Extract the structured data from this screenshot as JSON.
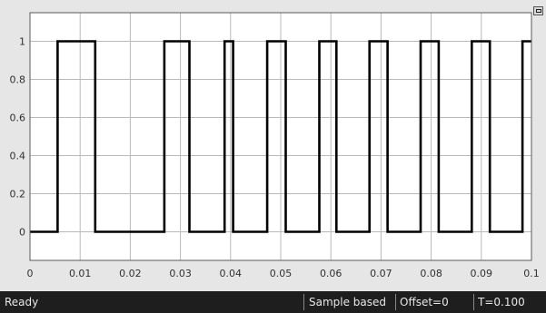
{
  "status_bar": {
    "ready": "Ready",
    "mode": "Sample based",
    "offset": "Offset=0",
    "time": "T=0.100"
  },
  "icons": {
    "autoscale": "autoscale-icon"
  },
  "colors": {
    "background": "#e6e6e6",
    "axes_background": "#ffffff",
    "grid": "#b9b9b9",
    "signal": "#000000",
    "status_bar": "#1e1e1e",
    "status_text": "#e8e8e8"
  },
  "chart_data": {
    "type": "line",
    "title": "",
    "xlabel": "",
    "ylabel": "",
    "xlim": [
      0,
      0.1
    ],
    "ylim": [
      -0.15,
      1.15
    ],
    "grid": true,
    "x_ticks": [
      "0",
      "0.01",
      "0.02",
      "0.03",
      "0.04",
      "0.05",
      "0.06",
      "0.07",
      "0.08",
      "0.09",
      "0.1"
    ],
    "y_ticks": [
      "0",
      "0.2",
      "0.4",
      "0.6",
      "0.8",
      "1"
    ],
    "series": [
      {
        "x": [
          0,
          0.0055,
          0.0055,
          0.013,
          0.013,
          0.0268,
          0.0268,
          0.0318,
          0.0318,
          0.0388,
          0.0388,
          0.0405,
          0.0405,
          0.0473,
          0.0473,
          0.051,
          0.051,
          0.0577,
          0.0577,
          0.0611,
          0.0611,
          0.0677,
          0.0677,
          0.0713,
          0.0713,
          0.0779,
          0.0779,
          0.0815,
          0.0815,
          0.0881,
          0.0881,
          0.0917,
          0.0917,
          0.0982,
          0.0982,
          0.1
        ],
        "y": [
          0,
          0,
          1,
          1,
          0,
          0,
          1,
          1,
          0,
          0,
          1,
          1,
          0,
          0,
          1,
          1,
          0,
          0,
          1,
          1,
          0,
          0,
          1,
          1,
          0,
          0,
          1,
          1,
          0,
          0,
          1,
          1,
          0,
          0,
          1,
          1
        ]
      }
    ]
  }
}
